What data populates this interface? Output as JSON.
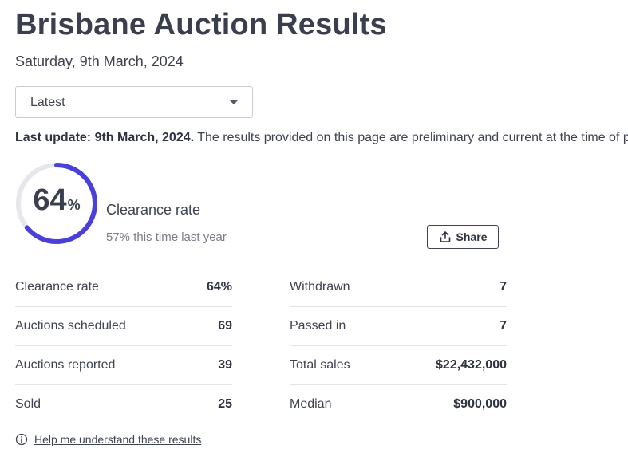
{
  "page": {
    "title": "Brisbane Auction Results",
    "date": "Saturday, 9th March, 2024"
  },
  "filter": {
    "selected": "Latest"
  },
  "update": {
    "label": "Last update: 9th March, 2024.",
    "text": " The results provided on this page are preliminary and current at the time of p"
  },
  "clearance": {
    "value": 64,
    "value_text": "64",
    "symbol": "%",
    "label": "Clearance rate",
    "last_year": "57% this time last year",
    "accent_color": "#4a3fd8",
    "track_color": "#e6e7ec"
  },
  "share": {
    "label": "Share",
    "icon": "share-upload-icon"
  },
  "stats_left": [
    {
      "label": "Clearance rate",
      "value": "64%"
    },
    {
      "label": "Auctions scheduled",
      "value": "69"
    },
    {
      "label": "Auctions reported",
      "value": "39"
    },
    {
      "label": "Sold",
      "value": "25"
    }
  ],
  "stats_right": [
    {
      "label": "Withdrawn",
      "value": "7"
    },
    {
      "label": "Passed in",
      "value": "7"
    },
    {
      "label": "Total sales",
      "value": "$22,432,000"
    },
    {
      "label": "Median",
      "value": "$900,000"
    }
  ],
  "help": {
    "label": "Help me understand these results",
    "icon": "info-icon"
  }
}
